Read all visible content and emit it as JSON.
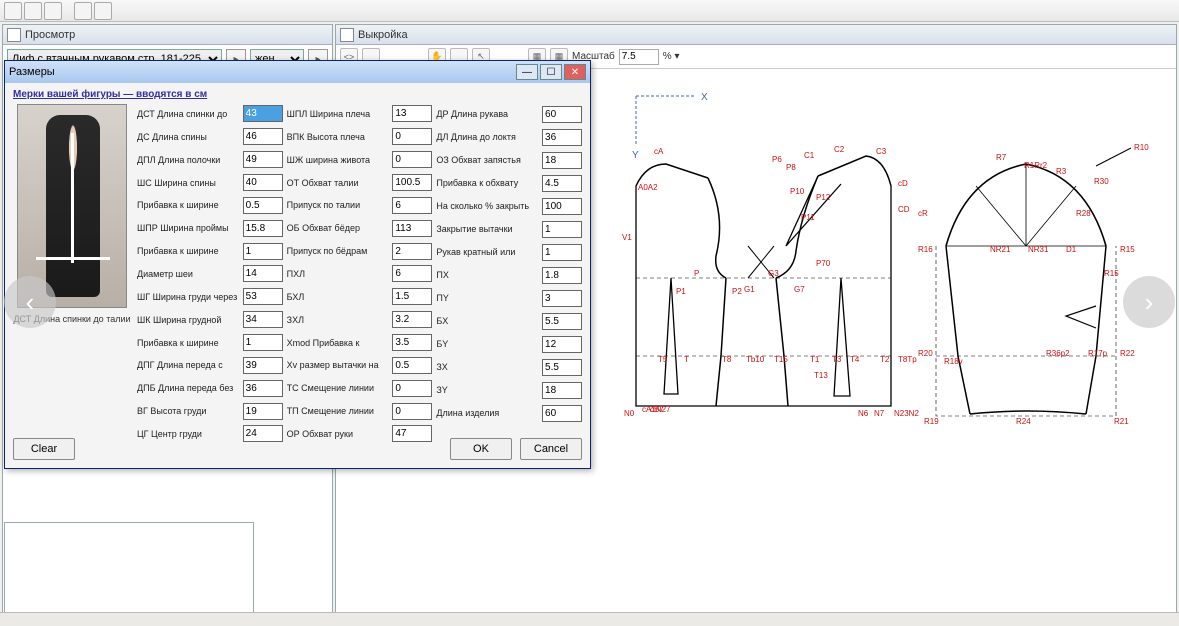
{
  "top_toolbar": {
    "buttons": [
      "a",
      "b",
      "c",
      "d",
      "e"
    ]
  },
  "left_panel": {
    "title": "Просмотр",
    "model_select": "Лиф с втачным рукавом стр. 181-225",
    "gender_select": "жен"
  },
  "right_panel": {
    "title": "Выкройка",
    "scale_label": "Масштаб",
    "scale_value": "7.5",
    "scale_suffix": "% ▾"
  },
  "dialog": {
    "title": "Размеры",
    "top_line": "Мерки вашей фигуры — вводятся в см",
    "photo_caption": "ДСТ Длина спинки до талии",
    "columns": {
      "col1": [
        {
          "label": "ДСТ Длина спинки до",
          "value": "43",
          "highlight": true
        },
        {
          "label": "ДС Длина спины",
          "value": "46"
        },
        {
          "label": "ДПЛ Длина полочки",
          "value": "49"
        },
        {
          "label": "ШС Ширина спины",
          "value": "40"
        },
        {
          "label": "Прибавка к ширине",
          "value": "0.5"
        },
        {
          "label": "ШПР Ширина проймы",
          "value": "15.8"
        },
        {
          "label": "Прибавка к ширине",
          "value": "1"
        },
        {
          "label": "Диаметр шеи",
          "value": "14"
        },
        {
          "label": "ШГ Ширина груди через",
          "value": "53"
        },
        {
          "label": "ШК Ширина грудной",
          "value": "34"
        },
        {
          "label": "Прибавка к ширине",
          "value": "1"
        },
        {
          "label": "ДПГ Длина переда с",
          "value": "39"
        },
        {
          "label": "ДПБ Длина переда без",
          "value": "36"
        },
        {
          "label": "ВГ Высота груди",
          "value": "19"
        },
        {
          "label": "ЦГ Центр груди",
          "value": "24"
        }
      ],
      "col2": [
        {
          "label": "ШПЛ Ширина плеча",
          "value": "13"
        },
        {
          "label": "ВПК Высота плеча",
          "value": "0"
        },
        {
          "label": "ШЖ ширина живота",
          "value": "0"
        },
        {
          "label": "ОТ Обхват талии",
          "value": "100.5"
        },
        {
          "label": "Припуск по талии",
          "value": "6"
        },
        {
          "label": "ОБ Обхват бёдер",
          "value": "113"
        },
        {
          "label": "Припуск по бёдрам",
          "value": "2"
        },
        {
          "label": "ПХЛ",
          "value": "6"
        },
        {
          "label": "БХЛ",
          "value": "1.5"
        },
        {
          "label": "ЗХЛ",
          "value": "3.2"
        },
        {
          "label": "Xmod Прибавка к",
          "value": "3.5"
        },
        {
          "label": "Xv размер вытачки на",
          "value": "0.5"
        },
        {
          "label": "ТС Смещение линии",
          "value": "0"
        },
        {
          "label": "ТП Смещение линии",
          "value": "0"
        },
        {
          "label": "ОР Обхват руки",
          "value": "47"
        }
      ],
      "col3": [
        {
          "label": "ДР Длина рукава",
          "value": "60"
        },
        {
          "label": "ДЛ Длина до локтя",
          "value": "36"
        },
        {
          "label": "ОЗ Обхват запястья",
          "value": "18"
        },
        {
          "label": "Прибавка к обхвату",
          "value": "4.5"
        },
        {
          "label": "На сколько % закрыть",
          "value": "100"
        },
        {
          "label": "Закрытие вытачки",
          "value": "1"
        },
        {
          "label": "Рукав кратный или",
          "value": "1"
        },
        {
          "label": "ПX",
          "value": "1.8"
        },
        {
          "label": "ПY",
          "value": "3"
        },
        {
          "label": "БX",
          "value": "5.5"
        },
        {
          "label": "БY",
          "value": "12"
        },
        {
          "label": "ЗX",
          "value": "5.5"
        },
        {
          "label": "ЗY",
          "value": "18"
        },
        {
          "label": "Длина изделия",
          "value": "60"
        }
      ]
    },
    "buttons": {
      "clear": "Clear",
      "ok": "OK",
      "cancel": "Cancel"
    }
  },
  "pattern": {
    "colors": {
      "line": "#000000",
      "label": "#d01010",
      "axis": "#4060d0",
      "bg": "#ffffff"
    },
    "axis": {
      "x_label": "X",
      "y_label": "Y"
    },
    "bodice_labels": [
      "cA",
      "A0A2",
      "V1",
      "P",
      "P1",
      "T5",
      "T",
      "cB7",
      "N0",
      "G3",
      "G1",
      "G7",
      "P2",
      "P11",
      "P10",
      "P12",
      "C2",
      "C1",
      "P8",
      "P6",
      "P70",
      "T4",
      "T3",
      "T1",
      "T15",
      "T8",
      "T2",
      "N6",
      "N7",
      "N23N2",
      "C3",
      "cD",
      "CD",
      "T13",
      "T8Tp",
      "Tb10",
      "cA1N27"
    ],
    "sleeve_labels": [
      "R7",
      "R10",
      "cR",
      "R16",
      "R20",
      "R18v",
      "R19",
      "R24",
      "R21",
      "R22",
      "R30",
      "R28",
      "NR31",
      "NR21",
      "D1",
      "R1Rr2",
      "R15",
      "R15",
      "R3",
      "R17p",
      "R36p2"
    ]
  }
}
